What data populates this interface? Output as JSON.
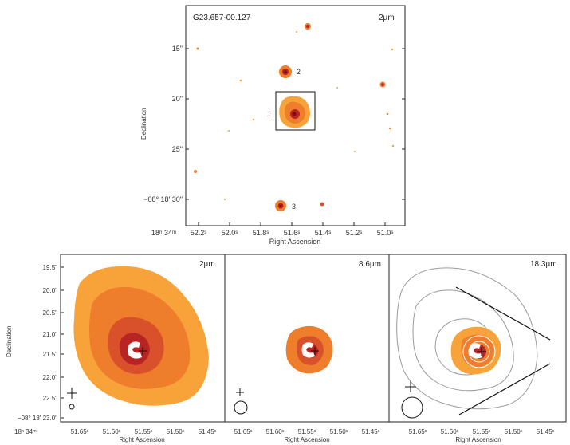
{
  "colors": {
    "outer": "#f7a33a",
    "mid": "#ee7d2c",
    "inner": "#d9512a",
    "core": "#b82424",
    "dark": "#7a1010",
    "contour": "#9a9a9a",
    "text": "#222222"
  },
  "top_panel": {
    "title": "G23.657-00.127",
    "band": "2µm",
    "xlabel": "Right Ascension",
    "ylabel": "Declination",
    "xticks": [
      "52.2ˢ",
      "52.0ˢ",
      "51.8ˢ",
      "51.6ˢ",
      "51.4ˢ",
      "51.2ˢ",
      "51.0ˢ"
    ],
    "x_prefix": "18ʰ 34ᵐ",
    "yticks": [
      "15\"",
      "20\"",
      "25\""
    ],
    "y_last": "−08° 18' 30\"",
    "source_labels": [
      "1",
      "2",
      "3"
    ]
  },
  "bottom_panels": [
    {
      "band": "2µm",
      "xlabel": "Right Ascension"
    },
    {
      "band": "8.6µm",
      "xlabel": "Right Ascension"
    },
    {
      "band": "18.3µm",
      "xlabel": "Right Ascension"
    }
  ],
  "bottom_axes": {
    "ylabel": "Declination",
    "yticks": [
      "19.5\"",
      "20.0\"",
      "20.5\"",
      "21.0\"",
      "21.5\"",
      "22.0\"",
      "22.5\""
    ],
    "y_last": "−08° 18' 23.0\"",
    "x_prefix": "18ʰ 34ᵐ",
    "xticks": [
      "51.65ˢ",
      "51.60ˢ",
      "51.55ˢ",
      "51.50ˢ",
      "51.45ˢ"
    ]
  }
}
